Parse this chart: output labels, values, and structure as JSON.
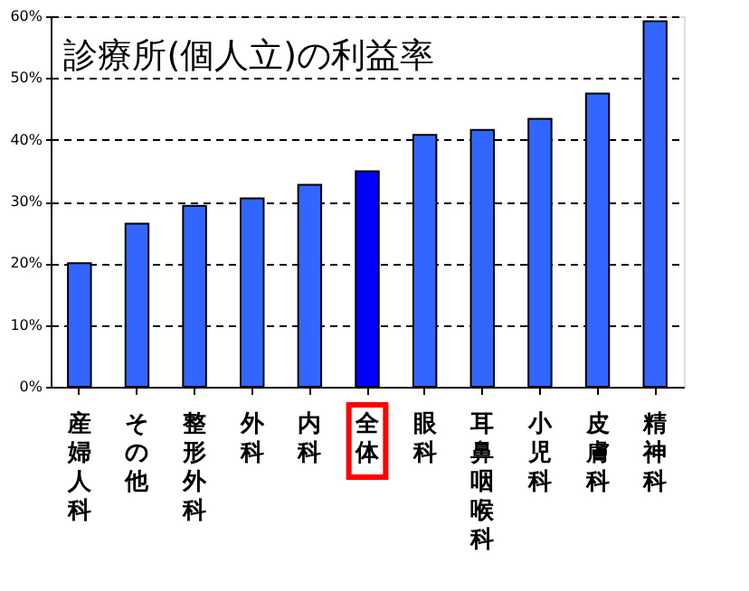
{
  "chart_data": {
    "type": "bar",
    "title": "診療所(個人立)の利益率",
    "categories": [
      "産婦人科",
      "その他",
      "整形外科",
      "外科",
      "内科",
      "全体",
      "眼科",
      "耳鼻咽喉科",
      "小児科",
      "皮膚科",
      "精神科"
    ],
    "values": [
      20,
      26.4,
      29.3,
      30.5,
      32.7,
      34.9,
      40.8,
      41.6,
      43.4,
      47.5,
      59.2
    ],
    "colors": [
      "#3366ff",
      "#3366ff",
      "#3366ff",
      "#3366ff",
      "#3366ff",
      "#0000ff",
      "#3366ff",
      "#3366ff",
      "#3366ff",
      "#3366ff",
      "#3366ff"
    ],
    "ylim": [
      0,
      60
    ],
    "yticks": [
      {
        "value": 0,
        "label": "0%"
      },
      {
        "value": 10,
        "label": "10%"
      },
      {
        "value": 20,
        "label": "20%"
      },
      {
        "value": 30,
        "label": "30%"
      },
      {
        "value": 40,
        "label": "40%"
      },
      {
        "value": 50,
        "label": "50%"
      },
      {
        "value": 60,
        "label": "60%"
      }
    ],
    "grid": "y"
  }
}
